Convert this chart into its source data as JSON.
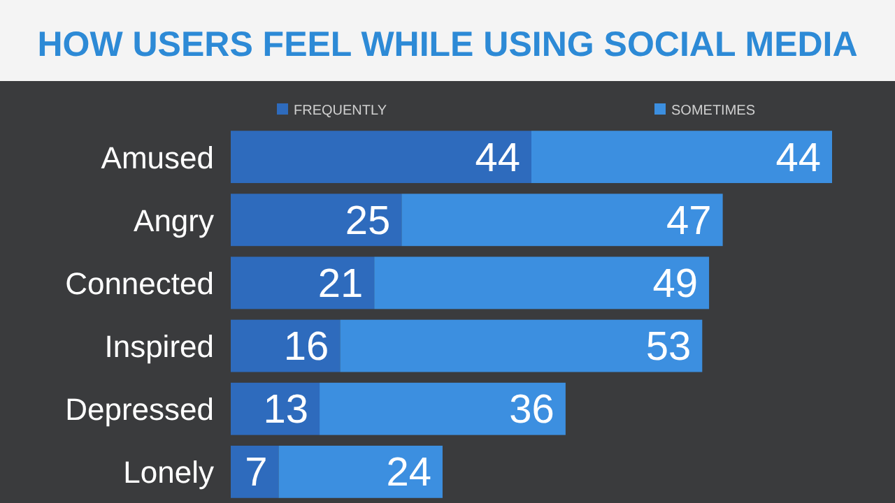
{
  "chart_data": {
    "type": "bar",
    "title": "HOW USERS FEEL WHILE USING SOCIAL MEDIA",
    "orientation": "horizontal",
    "stacked": true,
    "data_labels": true,
    "legend": "top",
    "categories": [
      "Amused",
      "Angry",
      "Connected",
      "Inspired",
      "Depressed",
      "Lonely"
    ],
    "series": [
      {
        "name": "FREQUENTLY",
        "color": "#2e6bbd",
        "values": [
          44,
          25,
          21,
          16,
          13,
          7
        ]
      },
      {
        "name": "SOMETIMES",
        "color": "#3c8fe0",
        "values": [
          44,
          47,
          49,
          53,
          36,
          24
        ]
      }
    ]
  }
}
